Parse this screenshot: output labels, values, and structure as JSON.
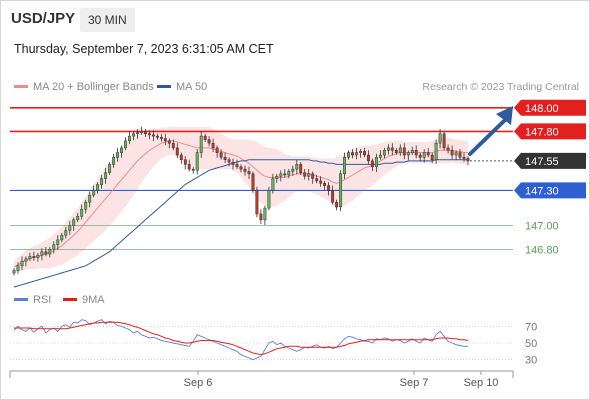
{
  "header": {
    "pair": "USD/JPY",
    "timeframe": "30 MIN",
    "datetime": "Thursday, September 7, 2023 6:31:05 AM CET"
  },
  "legend": {
    "ma20": {
      "label": "MA 20 + Bollinger Bands",
      "color": "#f08a8a"
    },
    "ma50": {
      "label": "MA 50",
      "color": "#2f5a9c"
    },
    "credit": "Research © 2023 Trading Central"
  },
  "rsi_legend": {
    "rsi": {
      "label": "RSI",
      "color": "#5b7fd6"
    },
    "ma9": {
      "label": "9MA",
      "color": "#e32020"
    }
  },
  "colors": {
    "bull": "#5fb85f",
    "bear": "#c0392b",
    "resistance": "#e32020",
    "support": "#2f5fd0",
    "target": "#5aa05a",
    "band_fill": "#fde4e4",
    "last": "#333333"
  },
  "chart_data": [
    {
      "type": "candlestick",
      "title": "USD/JPY 30 MIN",
      "ylim": [
        146.54,
        148.1
      ],
      "x_labels": [
        "Sep 6",
        "Sep 7",
        "Sep 10"
      ],
      "price_levels": [
        {
          "value": 148.0,
          "label": "148.00",
          "kind": "resistance"
        },
        {
          "value": 147.8,
          "label": "147.80",
          "kind": "resistance"
        },
        {
          "value": 147.55,
          "label": "147.55",
          "kind": "last"
        },
        {
          "value": 147.3,
          "label": "147.30",
          "kind": "support"
        },
        {
          "value": 147.0,
          "label": "147.00",
          "kind": "target"
        },
        {
          "value": 146.8,
          "label": "146.80",
          "kind": "target"
        }
      ],
      "close": [
        146.62,
        146.66,
        146.7,
        146.72,
        146.74,
        146.73,
        146.75,
        146.78,
        146.76,
        146.8,
        146.84,
        146.88,
        146.92,
        146.96,
        147.0,
        147.05,
        147.08,
        147.14,
        147.2,
        147.26,
        147.3,
        147.35,
        147.4,
        147.45,
        147.52,
        147.58,
        147.62,
        147.66,
        147.72,
        147.76,
        147.78,
        147.79,
        147.8,
        147.78,
        147.77,
        147.76,
        147.75,
        147.74,
        147.72,
        147.7,
        147.66,
        147.6,
        147.56,
        147.52,
        147.48,
        147.47,
        147.62,
        147.76,
        147.73,
        147.7,
        147.66,
        147.62,
        147.58,
        147.56,
        147.54,
        147.52,
        147.5,
        147.48,
        147.46,
        147.44,
        147.3,
        147.1,
        147.05,
        147.15,
        147.3,
        147.4,
        147.42,
        147.44,
        147.43,
        147.46,
        147.48,
        147.52,
        147.45,
        147.42,
        147.44,
        147.4,
        147.38,
        147.36,
        147.34,
        147.3,
        147.2,
        147.16,
        147.44,
        147.58,
        147.62,
        147.6,
        147.62,
        147.63,
        147.6,
        147.55,
        147.5,
        147.58,
        147.6,
        147.64,
        147.66,
        147.64,
        147.62,
        147.66,
        147.6,
        147.62,
        147.64,
        147.6,
        147.58,
        147.62,
        147.6,
        147.56,
        147.7,
        147.78,
        147.66,
        147.64,
        147.6,
        147.62,
        147.58,
        147.57,
        147.55
      ],
      "ma20": [
        146.65,
        146.67,
        146.69,
        146.71,
        146.72,
        146.73,
        146.74,
        146.75,
        146.76,
        146.77,
        146.79,
        146.81,
        146.83,
        146.86,
        146.89,
        146.92,
        146.95,
        146.99,
        147.03,
        147.07,
        147.11,
        147.15,
        147.19,
        147.23,
        147.27,
        147.31,
        147.35,
        147.39,
        147.43,
        147.47,
        147.51,
        147.55,
        147.58,
        147.61,
        147.64,
        147.66,
        147.68,
        147.7,
        147.71,
        147.72,
        147.72,
        147.71,
        147.7,
        147.69,
        147.68,
        147.67,
        147.66,
        147.66,
        147.66,
        147.66,
        147.65,
        147.64,
        147.63,
        147.62,
        147.61,
        147.6,
        147.59,
        147.57,
        147.55,
        147.53,
        147.5,
        147.47,
        147.44,
        147.42,
        147.41,
        147.41,
        147.41,
        147.41,
        147.41,
        147.42,
        147.43,
        147.44,
        147.44,
        147.44,
        147.44,
        147.43,
        147.42,
        147.41,
        147.4,
        147.39,
        147.37,
        147.36,
        147.37,
        147.39,
        147.41,
        147.43,
        147.45,
        147.47,
        147.49,
        147.5,
        147.51,
        147.53,
        147.55,
        147.57,
        147.59,
        147.6,
        147.61,
        147.62,
        147.62,
        147.62,
        147.62,
        147.62,
        147.62,
        147.62,
        147.62,
        147.62,
        147.63,
        147.64,
        147.64,
        147.64,
        147.64,
        147.63,
        147.63,
        147.62,
        147.62
      ],
      "ma50": [
        146.48,
        146.49,
        146.5,
        146.51,
        146.52,
        146.53,
        146.54,
        146.55,
        146.56,
        146.57,
        146.58,
        146.59,
        146.6,
        146.61,
        146.62,
        146.63,
        146.64,
        146.65,
        146.66,
        146.68,
        146.7,
        146.72,
        146.74,
        146.76,
        146.78,
        146.81,
        146.84,
        146.87,
        146.9,
        146.93,
        146.96,
        146.99,
        147.02,
        147.05,
        147.08,
        147.11,
        147.14,
        147.17,
        147.2,
        147.23,
        147.26,
        147.29,
        147.32,
        147.35,
        147.37,
        147.39,
        147.41,
        147.43,
        147.45,
        147.47,
        147.48,
        147.49,
        147.5,
        147.51,
        147.52,
        147.53,
        147.54,
        147.55,
        147.55,
        147.56,
        147.56,
        147.56,
        147.56,
        147.56,
        147.56,
        147.56,
        147.56,
        147.56,
        147.56,
        147.56,
        147.56,
        147.56,
        147.56,
        147.56,
        147.56,
        147.55,
        147.55,
        147.54,
        147.54,
        147.53,
        147.53,
        147.52,
        147.52,
        147.52,
        147.52,
        147.52,
        147.52,
        147.52,
        147.52,
        147.52,
        147.52,
        147.52,
        147.52,
        147.53,
        147.53,
        147.53,
        147.54,
        147.54,
        147.54,
        147.55,
        147.55,
        147.55,
        147.55,
        147.55,
        147.55,
        147.55,
        147.56,
        147.56,
        147.56,
        147.56,
        147.56,
        147.56,
        147.56,
        147.56,
        147.56
      ],
      "band_width": [
        0.05,
        0.06,
        0.07,
        0.08,
        0.09,
        0.1,
        0.1,
        0.11,
        0.12,
        0.13,
        0.14,
        0.15,
        0.16,
        0.17,
        0.18,
        0.19,
        0.2,
        0.21,
        0.22,
        0.23,
        0.24,
        0.25,
        0.26,
        0.27,
        0.27,
        0.27,
        0.27,
        0.27,
        0.27,
        0.26,
        0.25,
        0.24,
        0.22,
        0.2,
        0.18,
        0.16,
        0.14,
        0.13,
        0.12,
        0.12,
        0.12,
        0.13,
        0.14,
        0.15,
        0.16,
        0.17,
        0.18,
        0.18,
        0.18,
        0.18,
        0.17,
        0.16,
        0.15,
        0.14,
        0.13,
        0.13,
        0.14,
        0.16,
        0.18,
        0.2,
        0.22,
        0.24,
        0.25,
        0.25,
        0.25,
        0.25,
        0.24,
        0.22,
        0.2,
        0.18,
        0.16,
        0.15,
        0.15,
        0.15,
        0.15,
        0.15,
        0.15,
        0.16,
        0.17,
        0.18,
        0.2,
        0.22,
        0.22,
        0.22,
        0.22,
        0.22,
        0.21,
        0.2,
        0.19,
        0.18,
        0.17,
        0.16,
        0.15,
        0.14,
        0.13,
        0.12,
        0.11,
        0.1,
        0.09,
        0.09,
        0.09,
        0.09,
        0.09,
        0.09,
        0.09,
        0.1,
        0.1,
        0.11,
        0.11,
        0.11,
        0.1,
        0.1,
        0.1,
        0.1,
        0.1
      ]
    },
    {
      "type": "line",
      "title": "RSI",
      "ylim": [
        20,
        80
      ],
      "ticks": [
        "70",
        "50",
        "30"
      ],
      "series": [
        {
          "name": "RSI",
          "values": [
            65,
            70,
            66,
            64,
            68,
            63,
            67,
            70,
            62,
            66,
            68,
            64,
            70,
            72,
            69,
            75,
            74,
            78,
            77,
            72,
            74,
            76,
            78,
            73,
            76,
            75,
            71,
            70,
            68,
            66,
            62,
            64,
            60,
            58,
            56,
            57,
            55,
            53,
            52,
            51,
            50,
            49,
            48,
            47,
            46,
            52,
            60,
            58,
            56,
            54,
            52,
            50,
            48,
            46,
            44,
            42,
            40,
            36,
            34,
            32,
            30,
            32,
            34,
            42,
            50,
            52,
            48,
            50,
            46,
            44,
            42,
            40,
            42,
            45,
            44,
            46,
            48,
            45,
            44,
            46,
            43,
            45,
            50,
            55,
            58,
            57,
            55,
            54,
            52,
            52,
            50,
            55,
            54,
            56,
            55,
            52,
            54,
            53,
            50,
            52,
            55,
            52,
            50,
            56,
            54,
            52,
            60,
            64,
            58,
            52,
            50,
            48,
            47,
            46,
            46
          ]
        },
        {
          "name": "9MA",
          "values": [
            68,
            68,
            68,
            68,
            68,
            67,
            67,
            67,
            67,
            67,
            67,
            67,
            67,
            67,
            68,
            69,
            70,
            71,
            72,
            73,
            74,
            74,
            75,
            75,
            75,
            75,
            75,
            74,
            73,
            72,
            70,
            69,
            67,
            65,
            63,
            61,
            60,
            58,
            56,
            55,
            53,
            52,
            51,
            50,
            50,
            51,
            52,
            53,
            53,
            53,
            53,
            52,
            51,
            50,
            49,
            48,
            46,
            44,
            42,
            40,
            38,
            37,
            36,
            37,
            39,
            41,
            43,
            44,
            45,
            46,
            46,
            46,
            45,
            45,
            45,
            45,
            45,
            45,
            45,
            45,
            45,
            45,
            46,
            47,
            49,
            50,
            51,
            52,
            53,
            54,
            54,
            54,
            54,
            54,
            54,
            54,
            54,
            54,
            54,
            54,
            54,
            54,
            54,
            54,
            54,
            54,
            55,
            56,
            56,
            56,
            55,
            55,
            54,
            54,
            53
          ]
        }
      ]
    }
  ]
}
